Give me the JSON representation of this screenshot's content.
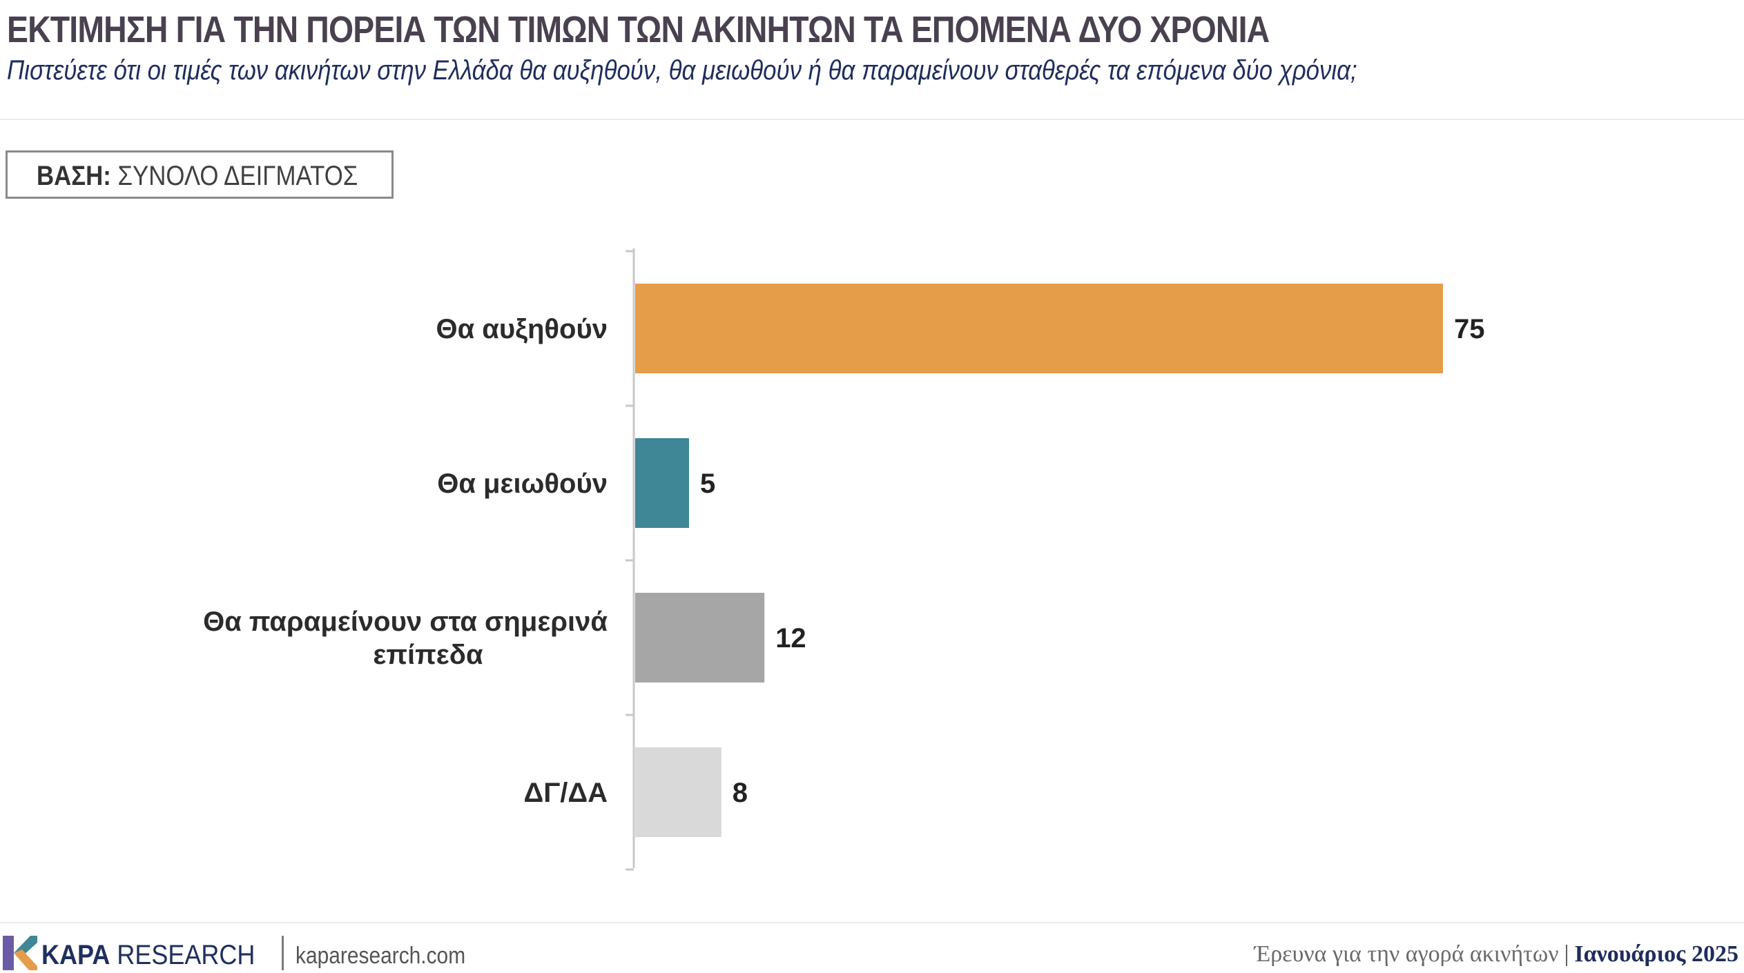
{
  "header": {
    "title": "ΕΚΤΙΜΗΣΗ ΓΙΑ ΤΗΝ ΠΟΡΕΙΑ ΤΩΝ ΤΙΜΩΝ ΤΩΝ ΑΚΙΝΗΤΩΝ ΤΑ ΕΠΟΜΕΝΑ ΔΥΟ ΧΡΟΝΙΑ",
    "subtitle": "Πιστεύετε ότι οι τιμές των ακινήτων στην Ελλάδα θα αυξηθούν, θα μειωθούν ή θα παραμείνουν σταθερές τα επόμενα δύο χρόνια;"
  },
  "base": {
    "label": "ΒΑΣΗ:",
    "value": "ΣΥΝΟΛΟ ΔΕΙΓΜΑΤΟΣ"
  },
  "chart_data": {
    "type": "bar",
    "orientation": "horizontal",
    "categories": [
      [
        "Θα αυξηθούν"
      ],
      [
        "Θα μειωθούν"
      ],
      [
        "Θα παραμείνουν στα σημερινά",
        "επίπεδα"
      ],
      [
        "ΔΓ/ΔΑ"
      ]
    ],
    "values": [
      75,
      5,
      12,
      8
    ],
    "colors": [
      "#E59D4A",
      "#3F8696",
      "#A6A6A6",
      "#D9D9D9"
    ],
    "xlim": [
      0,
      100
    ],
    "grid": false
  },
  "footer": {
    "brand_bold": "KAPA",
    "brand_rest": " RESEARCH",
    "site": "kaparesearch.com",
    "survey": "Έρευνα για την αγορά ακινήτων",
    "separator": "|",
    "date": "Ιανουάριος 2025",
    "logo_icon": "kapa-k-logo-icon",
    "colors": {
      "brand": "#1F2F5E",
      "logo_purple": "#6B5BA6",
      "logo_teal": "#3F8696",
      "logo_orange": "#E59D4A"
    }
  }
}
